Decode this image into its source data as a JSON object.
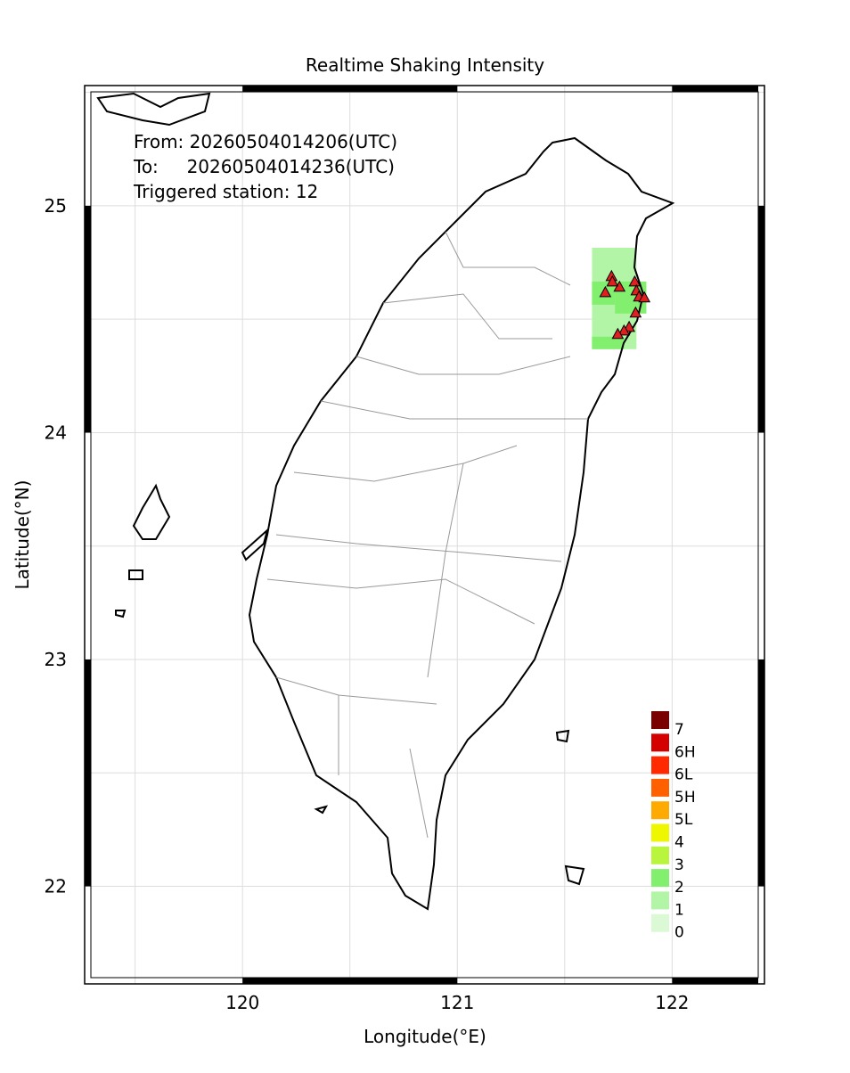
{
  "chart_data": {
    "type": "map",
    "title": "Realtime Shaking Intensity",
    "annotations": [
      "From: 20260504014206(UTC)",
      "To:     20260504014236(UTC)",
      "Triggered station: 12"
    ],
    "xlabel": "Longitude(°E)",
    "ylabel": "Latitude(°N)",
    "xlim": [
      119.265,
      122.43
    ],
    "ylim": [
      21.57,
      25.53
    ],
    "xticks": [
      120,
      121,
      122
    ],
    "yticks": [
      22,
      23,
      24,
      25
    ],
    "xgrid": [
      119.5,
      120,
      120.5,
      121,
      121.5,
      122
    ],
    "ygrid": [
      22,
      22.5,
      23,
      23.5,
      24,
      24.5,
      25,
      25.5
    ],
    "legend": [
      {
        "label": "7",
        "color": "#7a0000"
      },
      {
        "label": "6H",
        "color": "#d40000"
      },
      {
        "label": "6L",
        "color": "#ff2a00"
      },
      {
        "label": "5H",
        "color": "#ff6000"
      },
      {
        "label": "5L",
        "color": "#ffaa00"
      },
      {
        "label": "4",
        "color": "#eef700"
      },
      {
        "label": "3",
        "color": "#b8f53c"
      },
      {
        "label": "2",
        "color": "#82f06e"
      },
      {
        "label": "1",
        "color": "#b2f5a6"
      },
      {
        "label": "0",
        "color": "#daf9d4"
      }
    ],
    "intensity_cells": [
      {
        "lon": [
          121.627,
          121.834
        ],
        "lat": [
          24.368,
          24.815
        ],
        "level": 8
      },
      {
        "lon": [
          121.627,
          121.734
        ],
        "lat": [
          24.564,
          24.666
        ],
        "level": 7
      },
      {
        "lon": [
          121.734,
          121.88
        ],
        "lat": [
          24.525,
          24.666
        ],
        "level": 7
      },
      {
        "lon": [
          121.627,
          121.776
        ],
        "lat": [
          24.368,
          24.423
        ],
        "level": 7
      }
    ],
    "stations": {
      "lon": [
        121.718,
        121.755,
        121.689,
        121.826,
        121.834,
        121.846,
        121.871,
        121.83,
        121.8,
        121.776,
        121.747,
        121.722
      ],
      "lat": [
        24.69,
        24.643,
        24.619,
        24.666,
        24.627,
        24.6,
        24.596,
        24.529,
        24.466,
        24.45,
        24.435,
        24.666
      ],
      "color": "#e02020"
    }
  }
}
